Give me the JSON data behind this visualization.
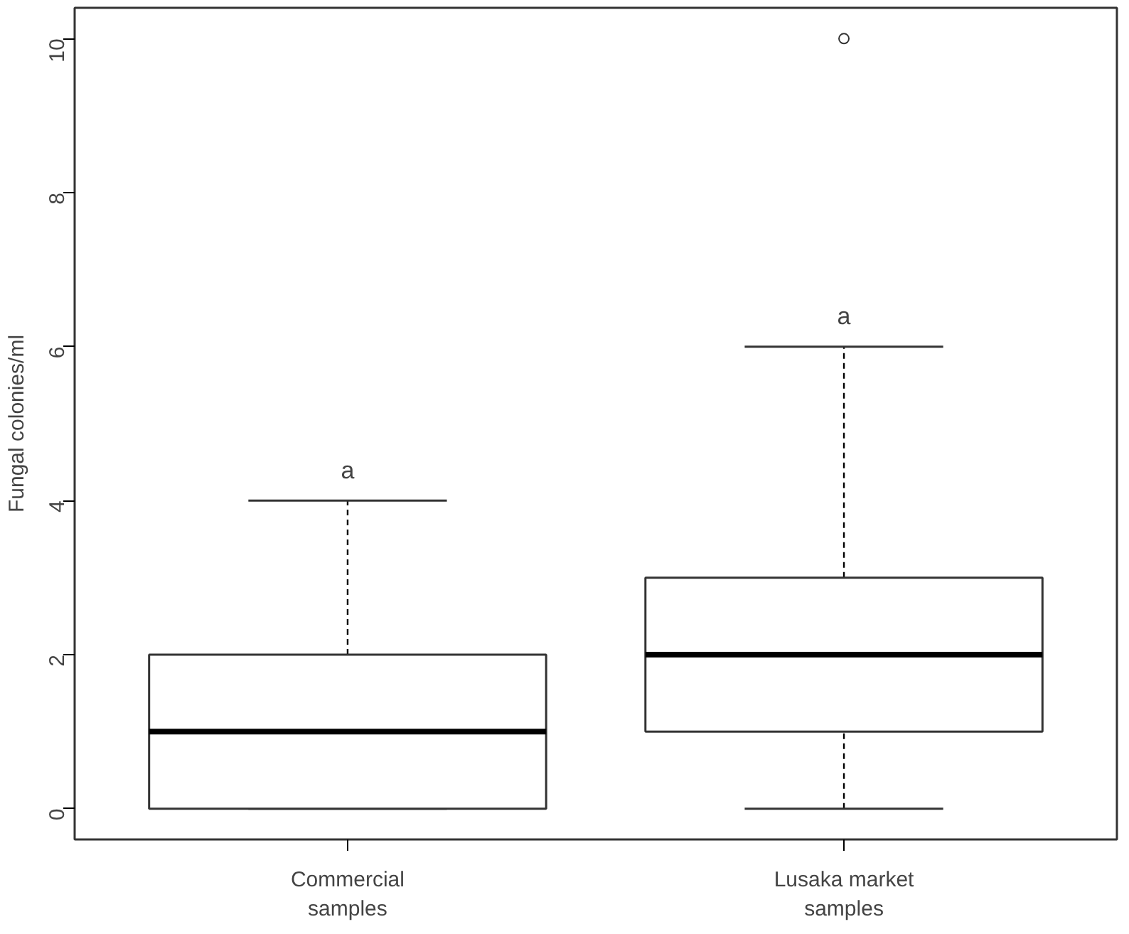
{
  "chart_data": {
    "type": "box",
    "categories": [
      "Commercial\nsamples",
      "Lusaka market\nsamples"
    ],
    "boxes": [
      {
        "low": 0,
        "q1": 0,
        "median": 1,
        "q3": 2,
        "high": 4
      },
      {
        "low": 0,
        "q1": 1,
        "median": 2,
        "q3": 3,
        "high": 6,
        "outliers": [
          10
        ]
      }
    ],
    "ylabel": "Fungal colonies/ml",
    "ylim": [
      -0.4,
      10.4
    ],
    "yticks": [
      0,
      2,
      4,
      6,
      8,
      10
    ],
    "grid": false,
    "annotations": [
      "a",
      "a"
    ]
  }
}
